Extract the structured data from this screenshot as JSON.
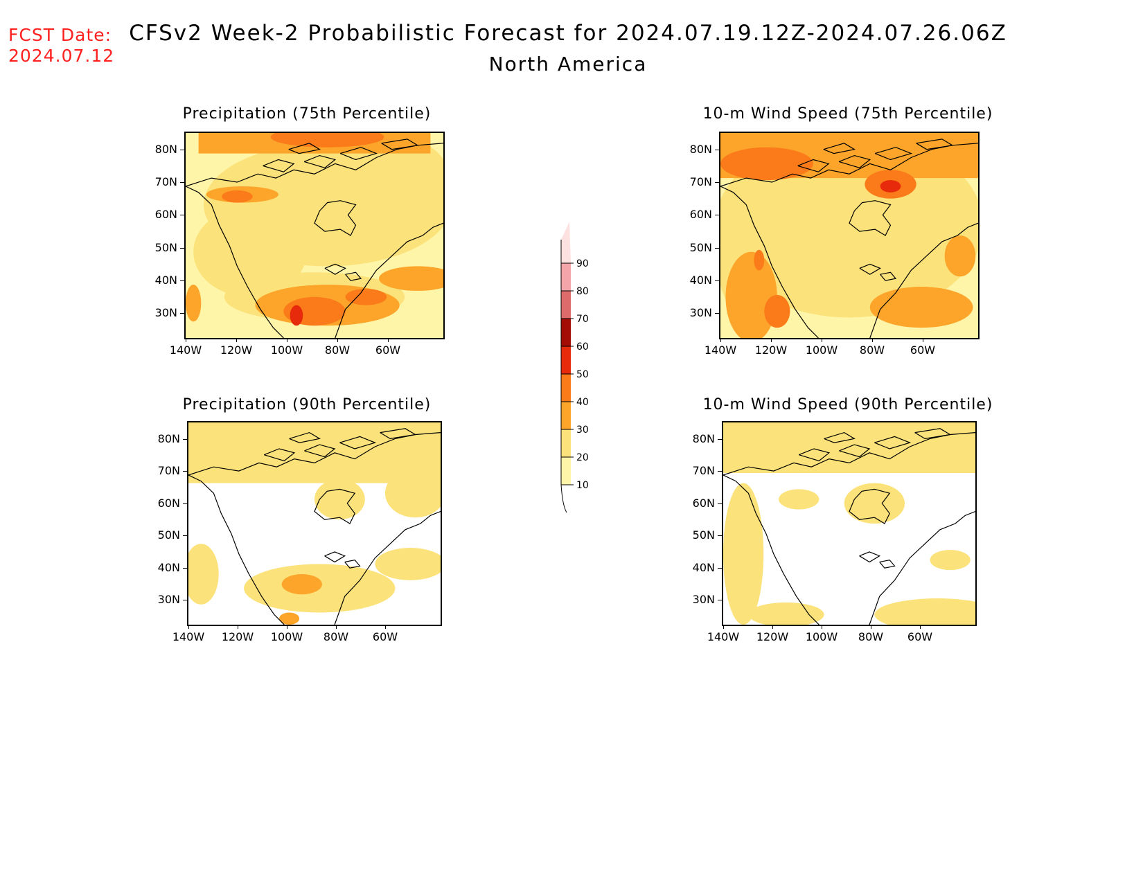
{
  "header": {
    "fcst_label": "FCST Date:",
    "fcst_date": "2024.07.12",
    "title_line1": "CFSv2 Week-2 Probabilistic Forecast for 2024.07.19.12Z-2024.07.26.06Z",
    "title_line2": "North America"
  },
  "panels": [
    {
      "id": "precip75",
      "title": "Precipitation (75th Percentile)"
    },
    {
      "id": "wind75",
      "title": "10-m Wind Speed (75th Percentile)"
    },
    {
      "id": "precip90",
      "title": "Precipitation (90th Percentile)"
    },
    {
      "id": "wind90",
      "title": "10-m Wind Speed (90th Percentile)"
    }
  ],
  "axes": {
    "lat_labels": [
      "80N",
      "70N",
      "60N",
      "50N",
      "40N",
      "30N"
    ],
    "lon_labels": [
      "140W",
      "120W",
      "100W",
      "80W",
      "60W"
    ]
  },
  "colorbar": {
    "levels": [
      "10",
      "20",
      "30",
      "40",
      "50",
      "60",
      "70",
      "80",
      "90"
    ],
    "colors": [
      "#fff5a8",
      "#fbe27a",
      "#fca52a",
      "#fb7b1a",
      "#e62a0b",
      "#a30d06",
      "#de6b6b",
      "#f4a5a9",
      "#fde1e1"
    ]
  }
}
